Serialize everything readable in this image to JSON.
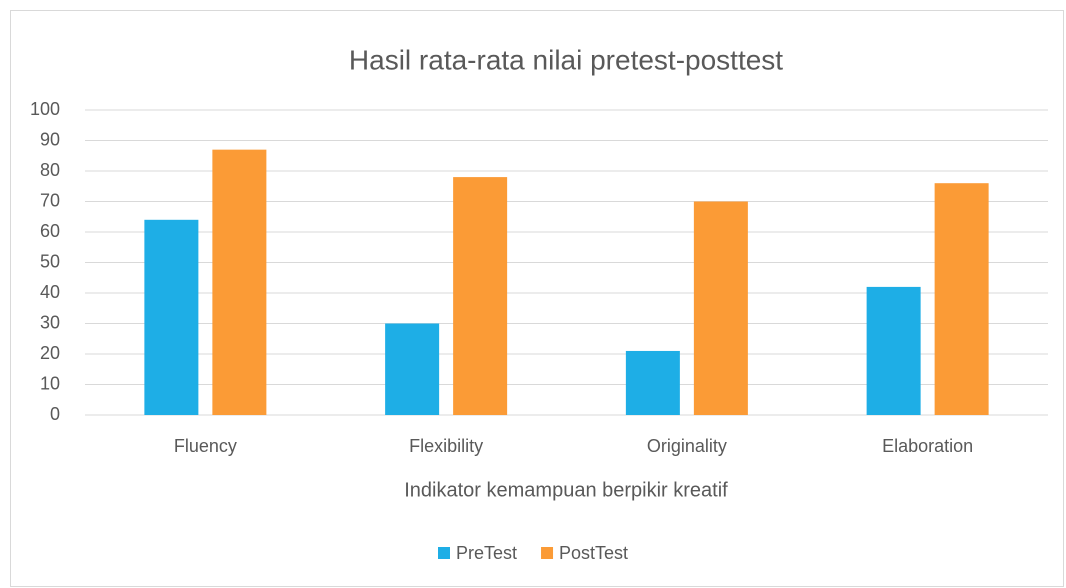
{
  "chart_data": {
    "type": "bar",
    "title": "Hasil rata-rata nilai pretest-posttest",
    "x_label": "Indikator kemampuan berpikir kreatif",
    "categories": [
      "Fluency",
      "Flexibility",
      "Originality",
      "Elaboration"
    ],
    "series": [
      {
        "name": "PreTest",
        "color": "#1eaee6",
        "values": [
          64,
          30,
          21,
          42
        ]
      },
      {
        "name": "PostTest",
        "color": "#fb9b36",
        "values": [
          87,
          78,
          70,
          76
        ]
      }
    ],
    "ylim": [
      0,
      100
    ],
    "yticks": [
      0,
      10,
      20,
      30,
      40,
      50,
      60,
      70,
      80,
      90,
      100
    ],
    "grid": true,
    "legend": "bottom"
  }
}
